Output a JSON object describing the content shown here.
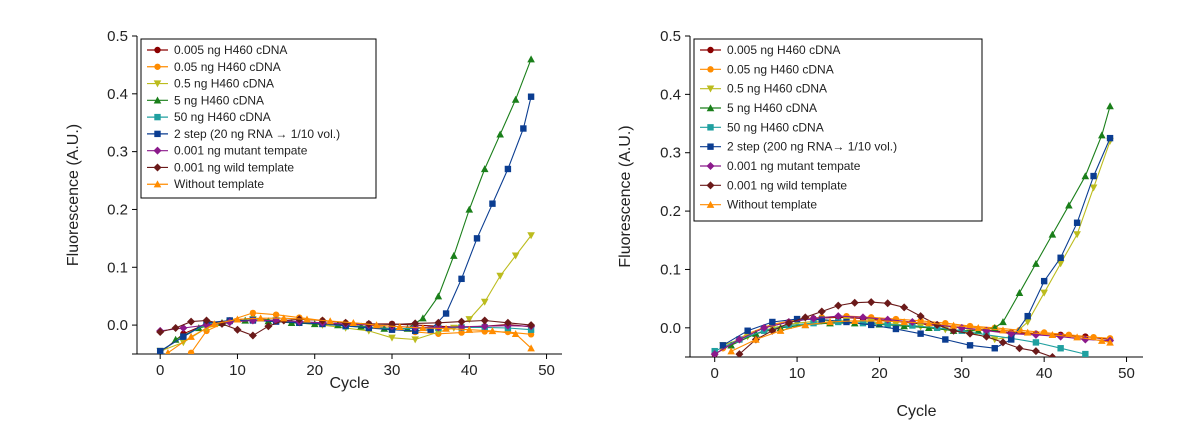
{
  "chart_data": [
    {
      "type": "line",
      "title": "",
      "xlabel": "Cycle",
      "ylabel": "Fluorescence (A.U.)",
      "xlim": [
        -3,
        52
      ],
      "ylim": [
        -0.05,
        0.5
      ],
      "xticks": [
        0,
        10,
        20,
        30,
        40,
        50
      ],
      "yticks": [
        -0.05,
        0.0,
        0.1,
        0.2,
        0.3,
        0.4,
        0.5
      ],
      "ytick_labels": [
        "",
        "0.0",
        "0.1",
        "0.2",
        "0.3",
        "0.4",
        "0.5"
      ],
      "legend_position": "top-left",
      "series": [
        {
          "name": "0.005 ng H460 cDNA",
          "color": "#8b0000",
          "marker": "circle",
          "x": [
            0,
            3,
            6,
            9,
            12,
            15,
            18,
            21,
            24,
            27,
            30,
            33,
            36,
            39,
            42,
            45,
            48
          ],
          "y": [
            -0.048,
            -0.015,
            0.002,
            0.008,
            0.012,
            0.008,
            0.004,
            0.002,
            0.001,
            0.002,
            0.002,
            0.0,
            -0.002,
            -0.004,
            -0.002,
            0.001,
            -0.003
          ]
        },
        {
          "name": "0.05 ng H460 cDNA",
          "color": "#ff8c00",
          "marker": "circle",
          "x": [
            4,
            6,
            9,
            12,
            15,
            18,
            21,
            24,
            27,
            30,
            33,
            36,
            39,
            42,
            45,
            48
          ],
          "y": [
            -0.048,
            -0.01,
            0.008,
            0.021,
            0.018,
            0.013,
            0.008,
            0.004,
            0.0,
            -0.006,
            -0.012,
            -0.015,
            -0.013,
            -0.011,
            -0.012,
            -0.016
          ]
        },
        {
          "name": "0.5 ng H460 cDNA",
          "color": "#bcbc1e",
          "marker": "triangle-down",
          "x": [
            0,
            3,
            6,
            9,
            12,
            15,
            18,
            21,
            24,
            27,
            30,
            33,
            36,
            38,
            40,
            42,
            44,
            46,
            48
          ],
          "y": [
            -0.045,
            -0.03,
            -0.005,
            0.005,
            0.01,
            0.008,
            0.004,
            0.0,
            -0.005,
            -0.01,
            -0.022,
            -0.025,
            -0.012,
            -0.005,
            0.01,
            0.04,
            0.085,
            0.12,
            0.155
          ]
        },
        {
          "name": "5 ng H460 cDNA",
          "color": "#1a7f1a",
          "marker": "triangle-up",
          "x": [
            2,
            5,
            8,
            11,
            14,
            17,
            20,
            23,
            26,
            29,
            32,
            34,
            36,
            38,
            40,
            42,
            44,
            46,
            48
          ],
          "y": [
            -0.025,
            -0.005,
            0.004,
            0.008,
            0.007,
            0.004,
            0.002,
            0.0,
            -0.002,
            -0.006,
            -0.006,
            0.012,
            0.05,
            0.12,
            0.2,
            0.27,
            0.33,
            0.39,
            0.46
          ]
        },
        {
          "name": "50 ng H460 cDNA",
          "color": "#20a0a0",
          "marker": "square",
          "x": [
            0,
            3,
            6,
            9,
            12,
            15,
            18,
            21,
            24,
            27,
            30,
            33,
            36,
            39,
            42,
            45,
            48
          ],
          "y": [
            -0.045,
            -0.02,
            0.002,
            0.007,
            0.009,
            0.008,
            0.005,
            0.002,
            -0.002,
            -0.004,
            -0.006,
            -0.006,
            -0.005,
            -0.004,
            -0.004,
            -0.005,
            -0.008
          ]
        },
        {
          "name": "2 step (20 ng RNA → 1/10 vol.)",
          "color": "#0b3d91",
          "marker": "square",
          "x": [
            0,
            3,
            6,
            9,
            12,
            15,
            18,
            21,
            24,
            27,
            30,
            33,
            35,
            37,
            39,
            41,
            43,
            45,
            47,
            48
          ],
          "y": [
            -0.045,
            -0.02,
            0.004,
            0.008,
            0.008,
            0.006,
            0.004,
            0.002,
            -0.001,
            -0.005,
            -0.008,
            -0.01,
            -0.008,
            0.02,
            0.08,
            0.15,
            0.21,
            0.27,
            0.34,
            0.395
          ]
        },
        {
          "name": "0.001 ng mutant tempate",
          "color": "#8b1a8b",
          "marker": "diamond",
          "x": [
            0,
            3,
            6,
            9,
            12,
            15,
            18,
            21,
            24,
            27,
            30,
            33,
            36,
            39,
            42,
            45,
            48
          ],
          "y": [
            -0.01,
            -0.005,
            0.0,
            0.005,
            0.008,
            0.008,
            0.006,
            0.004,
            0.002,
            0.0,
            -0.002,
            -0.004,
            -0.004,
            -0.003,
            -0.002,
            -0.001,
            -0.002
          ]
        },
        {
          "name": "0.001 ng wild template",
          "color": "#6b1a1a",
          "marker": "diamond",
          "x": [
            0,
            2,
            4,
            6,
            8,
            10,
            12,
            14,
            16,
            18,
            21,
            24,
            27,
            30,
            33,
            36,
            39,
            42,
            45,
            48
          ],
          "y": [
            -0.012,
            -0.005,
            0.006,
            0.008,
            0.002,
            -0.008,
            -0.018,
            -0.002,
            0.008,
            0.01,
            0.008,
            0.004,
            0.002,
            0.001,
            0.003,
            0.004,
            0.006,
            0.008,
            0.004,
            0.0
          ]
        },
        {
          "name": "Without template",
          "color": "#ff8c00",
          "marker": "triangle-up",
          "x": [
            1,
            4,
            7,
            10,
            13,
            16,
            19,
            22,
            25,
            28,
            31,
            34,
            37,
            40,
            43,
            46,
            48
          ],
          "y": [
            -0.048,
            -0.02,
            0.002,
            0.01,
            0.012,
            0.012,
            0.01,
            0.007,
            0.004,
            0.0,
            -0.003,
            -0.005,
            -0.006,
            -0.008,
            -0.01,
            -0.015,
            -0.04
          ]
        }
      ]
    },
    {
      "type": "line",
      "title": "",
      "xlabel": "Cycle",
      "ylabel": "Fluorescence (A.U.)",
      "xlim": [
        -3,
        52
      ],
      "ylim": [
        -0.05,
        0.5
      ],
      "xticks": [
        0,
        10,
        20,
        30,
        40,
        50
      ],
      "yticks": [
        -0.05,
        0.0,
        0.1,
        0.2,
        0.3,
        0.4,
        0.5
      ],
      "ytick_labels": [
        "",
        "0.0",
        "0.1",
        "0.2",
        "0.3",
        "0.4",
        "0.5"
      ],
      "legend_position": "top-left",
      "series": [
        {
          "name": "0.005 ng H460 cDNA",
          "color": "#8b0000",
          "marker": "circle",
          "x": [
            0,
            3,
            6,
            9,
            12,
            15,
            18,
            21,
            24,
            27,
            30,
            33,
            36,
            39,
            42,
            45,
            48
          ],
          "y": [
            -0.045,
            -0.02,
            0.0,
            0.01,
            0.016,
            0.018,
            0.016,
            0.012,
            0.008,
            0.004,
            0.0,
            -0.004,
            -0.008,
            -0.01,
            -0.012,
            -0.015,
            -0.02
          ]
        },
        {
          "name": "0.05 ng H460 cDNA",
          "color": "#ff8c00",
          "marker": "circle",
          "x": [
            1,
            4,
            7,
            10,
            13,
            16,
            19,
            22,
            25,
            28,
            31,
            34,
            37,
            40,
            43,
            46,
            48
          ],
          "y": [
            -0.035,
            -0.01,
            0.006,
            0.014,
            0.018,
            0.02,
            0.018,
            0.015,
            0.012,
            0.008,
            0.003,
            0.0,
            -0.004,
            -0.008,
            -0.012,
            -0.016,
            -0.018
          ]
        },
        {
          "name": "0.5 ng H460 cDNA",
          "color": "#bcbc1e",
          "marker": "triangle-down",
          "x": [
            1,
            4,
            7,
            10,
            13,
            16,
            19,
            22,
            25,
            28,
            31,
            34,
            36,
            38,
            40,
            42,
            44,
            46,
            48
          ],
          "y": [
            -0.03,
            -0.015,
            0.0,
            0.008,
            0.012,
            0.012,
            0.01,
            0.006,
            0.002,
            -0.003,
            -0.008,
            -0.02,
            -0.015,
            0.01,
            0.06,
            0.11,
            0.16,
            0.24,
            0.32
          ]
        },
        {
          "name": "5 ng H460 cDNA",
          "color": "#1a7f1a",
          "marker": "triangle-up",
          "x": [
            2,
            5,
            8,
            11,
            14,
            17,
            20,
            23,
            26,
            29,
            32,
            34,
            35,
            37,
            39,
            41,
            43,
            45,
            47,
            48
          ],
          "y": [
            -0.03,
            -0.01,
            0.0,
            0.005,
            0.008,
            0.008,
            0.006,
            0.003,
            0.0,
            -0.005,
            -0.005,
            0.0,
            0.01,
            0.06,
            0.11,
            0.16,
            0.21,
            0.26,
            0.33,
            0.38
          ]
        },
        {
          "name": "50 ng H460 cDNA",
          "color": "#20a0a0",
          "marker": "square",
          "x": [
            0,
            3,
            6,
            9,
            12,
            15,
            18,
            21,
            24,
            27,
            30,
            33,
            36,
            39,
            42,
            45
          ],
          "y": [
            -0.04,
            -0.02,
            -0.005,
            0.004,
            0.008,
            0.01,
            0.008,
            0.006,
            0.004,
            0.0,
            -0.005,
            -0.012,
            -0.018,
            -0.025,
            -0.035,
            -0.045
          ]
        },
        {
          "name": "2 step (200 ng RNA→ 1/10 vol.)",
          "color": "#0b3d91",
          "marker": "square",
          "x": [
            1,
            4,
            7,
            10,
            13,
            16,
            19,
            22,
            25,
            28,
            31,
            34,
            36,
            38,
            40,
            42,
            44,
            46,
            48
          ],
          "y": [
            -0.03,
            -0.005,
            0.01,
            0.015,
            0.014,
            0.01,
            0.005,
            -0.002,
            -0.01,
            -0.02,
            -0.03,
            -0.035,
            -0.02,
            0.02,
            0.08,
            0.12,
            0.18,
            0.26,
            0.325
          ]
        },
        {
          "name": "0.001 ng mutant tempate",
          "color": "#8b1a8b",
          "marker": "diamond",
          "x": [
            0,
            3,
            6,
            9,
            12,
            15,
            18,
            21,
            24,
            27,
            30,
            33,
            36,
            39,
            42,
            45,
            48
          ],
          "y": [
            -0.045,
            -0.02,
            0.0,
            0.01,
            0.016,
            0.02,
            0.018,
            0.014,
            0.01,
            0.005,
            0.0,
            -0.005,
            -0.01,
            -0.012,
            -0.015,
            -0.02,
            -0.022
          ]
        },
        {
          "name": "0.001 ng wild template",
          "color": "#6b1a1a",
          "marker": "diamond",
          "x": [
            3,
            5,
            7,
            9,
            11,
            13,
            15,
            17,
            19,
            21,
            23,
            25,
            27,
            29,
            31,
            33,
            35,
            37,
            39,
            41
          ],
          "y": [
            -0.045,
            -0.02,
            -0.005,
            0.008,
            0.018,
            0.028,
            0.038,
            0.043,
            0.044,
            0.042,
            0.035,
            0.02,
            0.005,
            -0.005,
            -0.01,
            -0.015,
            -0.025,
            -0.035,
            -0.04,
            -0.05
          ]
        },
        {
          "name": "Without template",
          "color": "#ff8c00",
          "marker": "triangle-up",
          "x": [
            2,
            5,
            8,
            11,
            14,
            17,
            20,
            23,
            26,
            29,
            32,
            35,
            38,
            41,
            44,
            47,
            48
          ],
          "y": [
            -0.04,
            -0.02,
            -0.005,
            0.005,
            0.01,
            0.012,
            0.012,
            0.01,
            0.008,
            0.004,
            0.0,
            -0.004,
            -0.008,
            -0.012,
            -0.016,
            -0.022,
            -0.025
          ]
        }
      ]
    }
  ]
}
